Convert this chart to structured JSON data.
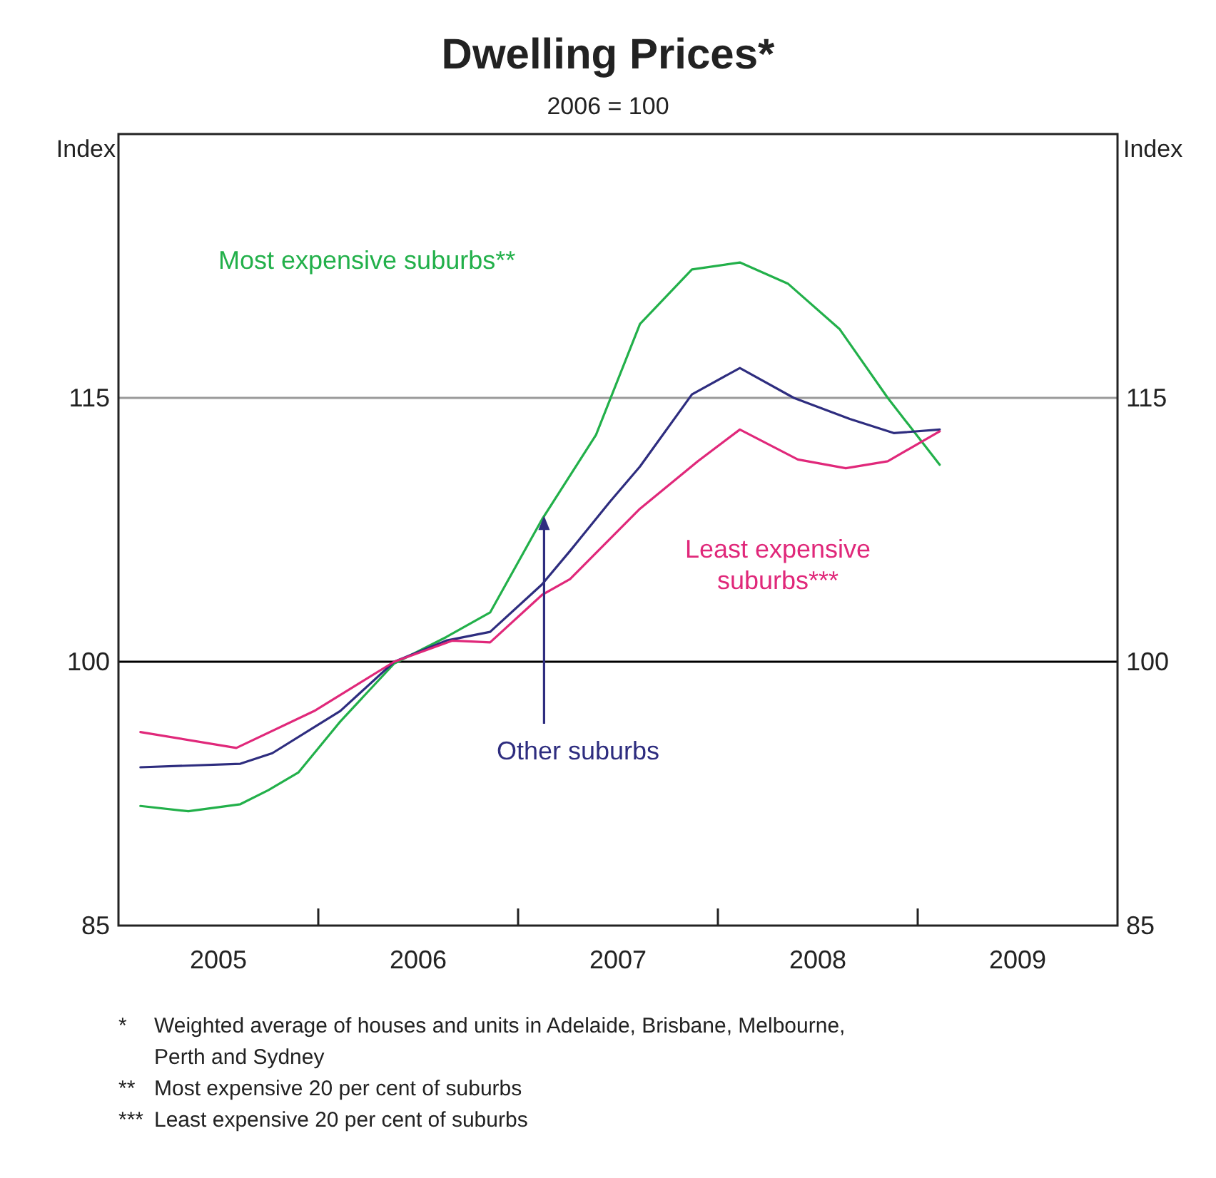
{
  "chart_data": {
    "type": "line",
    "title": "Dwelling Prices*",
    "subtitle": "2006 = 100",
    "ylabel": "Index",
    "y2label": "Index",
    "xlim": [
      2005,
      2010
    ],
    "xticks": [
      {
        "value": 2006,
        "label": null
      },
      {
        "value": 2007,
        "label": null
      },
      {
        "value": 2008,
        "label": null
      },
      {
        "value": 2009,
        "label": null
      },
      {
        "value": 2005.5,
        "label": "2005"
      },
      {
        "value": 2006.5,
        "label": "2006"
      },
      {
        "value": 2007.5,
        "label": "2007"
      },
      {
        "value": 2008.5,
        "label": "2008"
      },
      {
        "value": 2009.5,
        "label": "2009"
      }
    ],
    "ylim": [
      85,
      130
    ],
    "yticks": [
      85,
      100,
      115
    ],
    "y2lim": [
      85,
      130
    ],
    "y2ticks": [
      85,
      100,
      115
    ],
    "ref_lines": [
      {
        "axis": "y",
        "value": 100,
        "color": "#000000"
      },
      {
        "axis": "y",
        "value": 115,
        "color": "#999999"
      }
    ],
    "series": [
      {
        "name": "Most expensive suburbs**",
        "color": "#22b04a",
        "x": [
          2005.11,
          2005.35,
          2005.61,
          2005.75,
          2005.9,
          2006.11,
          2006.38,
          2006.64,
          2006.86,
          2007.12,
          2007.39,
          2007.61,
          2007.87,
          2008.11,
          2008.35,
          2008.61,
          2008.85,
          2009.11
        ],
        "values": [
          91.8,
          91.5,
          91.9,
          92.7,
          93.7,
          96.6,
          99.9,
          101.4,
          102.8,
          108.1,
          112.9,
          119.2,
          122.3,
          122.7,
          121.5,
          118.9,
          115,
          111.2
        ]
      },
      {
        "name": "Other suburbs",
        "color": "#2e2d7f",
        "x": [
          2005.11,
          2005.61,
          2005.77,
          2006.11,
          2006.38,
          2006.64,
          2006.86,
          2007.12,
          2007.26,
          2007.46,
          2007.61,
          2007.87,
          2008.11,
          2008.38,
          2008.66,
          2008.88,
          2009.11
        ],
        "values": [
          94,
          94.2,
          94.8,
          97.2,
          100,
          101.2,
          101.7,
          104.4,
          106.3,
          109.1,
          111.1,
          115.2,
          116.7,
          115,
          113.8,
          113,
          113.2
        ]
      },
      {
        "name": "Least expensive suburbs***",
        "color": "#e0287a",
        "x": [
          2005.11,
          2005.59,
          2005.98,
          2006.38,
          2006.67,
          2006.86,
          2007.12,
          2007.26,
          2007.61,
          2007.9,
          2008.11,
          2008.4,
          2008.64,
          2008.85,
          2009.11
        ],
        "values": [
          96,
          95.1,
          97.2,
          100,
          101.2,
          101.1,
          103.8,
          104.7,
          108.7,
          111.4,
          113.2,
          111.5,
          111,
          111.4,
          113.1
        ]
      }
    ],
    "annotations": [
      "*    Weighted average of houses and units in Adelaide, Brisbane, Melbourne, Perth and Sydney",
      "**   Most expensive 20 per cent of suburbs",
      "***  Least expensive 20 per cent of suburbs"
    ]
  }
}
